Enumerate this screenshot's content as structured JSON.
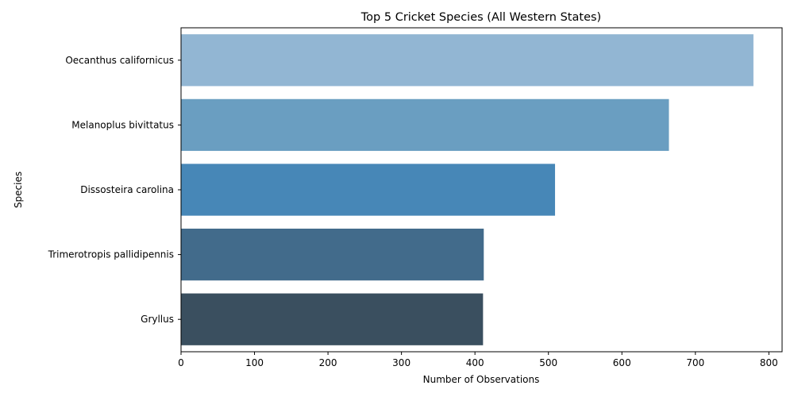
{
  "chart_data": {
    "type": "bar",
    "orientation": "horizontal",
    "title": "Top 5 Cricket Species (All Western States)",
    "xlabel": "Number of Observations",
    "ylabel": "Species",
    "categories": [
      "Oecanthus californicus",
      "Melanoplus bivittatus",
      "Dissosteira carolina",
      "Trimerotropis pallidipennis",
      "Gryllus"
    ],
    "values": [
      779,
      664,
      509,
      412,
      411
    ],
    "colors": [
      "#92b6d3",
      "#6a9ec1",
      "#4787b7",
      "#426b8b",
      "#3a4f5f"
    ],
    "xlim": [
      0,
      818
    ],
    "xticks": [
      0,
      100,
      200,
      300,
      400,
      500,
      600,
      700,
      800
    ],
    "grid": false,
    "legend": "none"
  }
}
